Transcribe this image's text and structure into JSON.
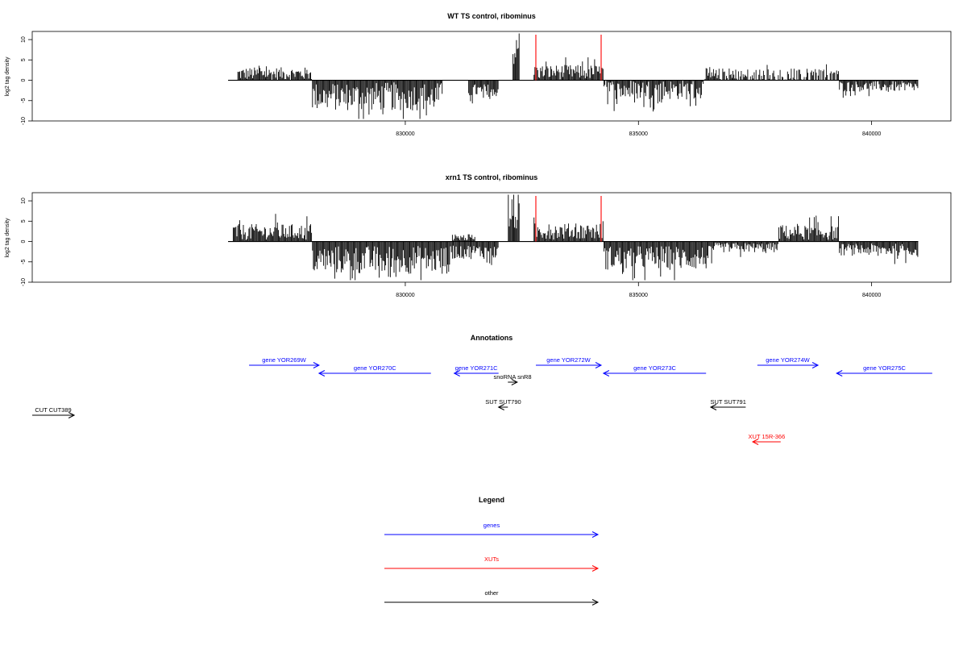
{
  "colors": {
    "gene": "#0000ff",
    "xut": "#ff0000",
    "other": "#000000",
    "marker": "#ff0000",
    "signal": "#000000"
  },
  "chart_data": [
    {
      "type": "bar",
      "title": "WT TS control, ribominus",
      "ylabel": "log2 tag density",
      "xlim": [
        822000,
        841700
      ],
      "ylim": [
        -10,
        12
      ],
      "x_ticks": [
        830000,
        835000,
        840000
      ],
      "y_ticks": [
        10,
        5,
        0,
        -5,
        -10
      ],
      "markers": [
        832800,
        834200
      ],
      "series": [
        {
          "x_range": [
            826400,
            828000
          ],
          "typical_value": 1.6,
          "amplitude": 1.6
        },
        {
          "x_range": [
            828000,
            830800
          ],
          "typical_value": -4.0,
          "amplitude": 3.5
        },
        {
          "x_range": [
            831350,
            832000
          ],
          "typical_value": -2.5,
          "amplitude": 1.6
        },
        {
          "x_range": [
            832300,
            832450
          ],
          "typical_value": 7.0,
          "amplitude": 3.5
        },
        {
          "x_range": [
            832750,
            834250
          ],
          "typical_value": 2.0,
          "amplitude": 1.8
        },
        {
          "x_range": [
            834250,
            836400
          ],
          "typical_value": -2.3,
          "amplitude": 2.5
        },
        {
          "x_range": [
            836400,
            839300
          ],
          "typical_value": 0.7,
          "amplitude": 2.3
        },
        {
          "x_range": [
            839300,
            841000
          ],
          "typical_value": -1.5,
          "amplitude": 1.3
        }
      ]
    },
    {
      "type": "bar",
      "title": "xrn1 TS control, ribominus",
      "ylabel": "log2 tag density",
      "xlim": [
        822000,
        841700
      ],
      "ylim": [
        -10,
        12
      ],
      "x_ticks": [
        830000,
        835000,
        840000
      ],
      "y_ticks": [
        10,
        5,
        0,
        -5,
        -10
      ],
      "markers": [
        832800,
        834200
      ],
      "series": [
        {
          "x_range": [
            826300,
            828000
          ],
          "typical_value": 2.3,
          "amplitude": 2.0
        },
        {
          "x_range": [
            828000,
            831000
          ],
          "typical_value": -4.5,
          "amplitude": 3.5
        },
        {
          "x_range": [
            831000,
            831500
          ],
          "typical_value": 1.0,
          "amplitude": 0.8
        },
        {
          "x_range": [
            831000,
            832000
          ],
          "typical_value": -2.5,
          "amplitude": 1.8
        },
        {
          "x_range": [
            832200,
            832450
          ],
          "typical_value": 6.5,
          "amplitude": 4.0
        },
        {
          "x_range": [
            832750,
            834250
          ],
          "typical_value": 2.5,
          "amplitude": 2.0
        },
        {
          "x_range": [
            834250,
            836600
          ],
          "typical_value": -4.0,
          "amplitude": 3.0
        },
        {
          "x_range": [
            836600,
            838000
          ],
          "typical_value": -1.5,
          "amplitude": 1.2
        },
        {
          "x_range": [
            838000,
            839300
          ],
          "typical_value": 2.2,
          "amplitude": 1.8
        },
        {
          "x_range": [
            839300,
            841000
          ],
          "typical_value": -2.0,
          "amplitude": 1.5
        }
      ]
    },
    {
      "type": "annotation-track",
      "title": "Annotations",
      "features": [
        {
          "label": "gene YOR269W",
          "start": 826650,
          "end": 828150,
          "row": 0,
          "category": "gene",
          "direction": "forward"
        },
        {
          "label": "gene YOR270C",
          "start": 828150,
          "end": 830550,
          "row": 1,
          "category": "gene",
          "direction": "reverse"
        },
        {
          "label": "gene YOR271C",
          "start": 831050,
          "end": 832000,
          "row": 1,
          "category": "gene",
          "direction": "reverse"
        },
        {
          "label": "snoRNA snR8",
          "start": 832200,
          "end": 832400,
          "row": 2,
          "category": "other",
          "direction": "forward"
        },
        {
          "label": "gene YOR272W",
          "start": 832800,
          "end": 834200,
          "row": 0,
          "category": "gene",
          "direction": "forward"
        },
        {
          "label": "gene YOR273C",
          "start": 834250,
          "end": 836450,
          "row": 1,
          "category": "gene",
          "direction": "reverse"
        },
        {
          "label": "gene YOR274W",
          "start": 837550,
          "end": 838850,
          "row": 0,
          "category": "gene",
          "direction": "forward"
        },
        {
          "label": "gene YOR275C",
          "start": 839250,
          "end": 841300,
          "row": 1,
          "category": "gene",
          "direction": "reverse"
        },
        {
          "label": "SUT SUT790",
          "start": 832000,
          "end": 832200,
          "row": 4,
          "category": "other",
          "direction": "reverse"
        },
        {
          "label": "SUT SUT791",
          "start": 836550,
          "end": 837300,
          "row": 4,
          "category": "other",
          "direction": "reverse"
        },
        {
          "label": "CUT CUT389",
          "start": 822000,
          "end": 822900,
          "row": 5,
          "category": "other",
          "direction": "forward"
        },
        {
          "label": "XUT 15R-366",
          "start": 837450,
          "end": 838050,
          "row": 7,
          "category": "xut",
          "direction": "reverse"
        }
      ]
    },
    {
      "type": "legend",
      "title": "Legend",
      "entries": [
        {
          "label": "genes",
          "category": "gene"
        },
        {
          "label": "XUTs",
          "category": "xut"
        },
        {
          "label": "other",
          "category": "other"
        }
      ]
    }
  ]
}
